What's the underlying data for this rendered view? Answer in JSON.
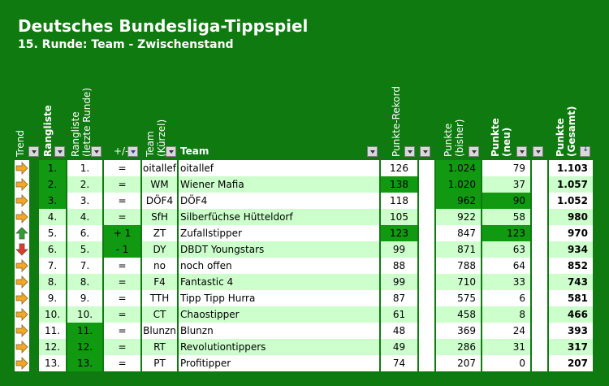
{
  "title": "Deutsches Bundesliga-Tippspiel",
  "subtitle": "15. Runde: Team - Zwischenstand",
  "headers": {
    "trend": "Trend",
    "rangliste": "Rangliste",
    "rangliste_letzte": "Rangliste\n(letzte Runde)",
    "plus_minus": "+/-",
    "team_kuerzel": "Team\n(Kürzel)",
    "team": "Team",
    "punkte_rekord": "Punkte-Rekord",
    "punkte_bisher": "Punkte\n(bisher)",
    "punkte_neu": "Punkte\n(neu)",
    "punkte_gesamt": "Punkte\n(Gesamt)"
  },
  "rows": [
    {
      "trend": "right",
      "rank": "1.",
      "last": "1.",
      "diff": "=",
      "abbr": "oitallef",
      "team": "oitallef",
      "record": "126",
      "bisher": "1.024",
      "neu": "79",
      "gesamt": "1.103"
    },
    {
      "trend": "right",
      "rank": "2.",
      "last": "2.",
      "diff": "=",
      "abbr": "WM",
      "team": "Wiener Mafia",
      "record": "138",
      "bisher": "1.020",
      "neu": "37",
      "gesamt": "1.057"
    },
    {
      "trend": "right",
      "rank": "3.",
      "last": "3.",
      "diff": "=",
      "abbr": "DÖF4",
      "team": "DÖF4",
      "record": "118",
      "bisher": "962",
      "neu": "90",
      "gesamt": "1.052"
    },
    {
      "trend": "right",
      "rank": "4.",
      "last": "4.",
      "diff": "=",
      "abbr": "SfH",
      "team": "Silberfüchse Hütteldorf",
      "record": "105",
      "bisher": "922",
      "neu": "58",
      "gesamt": "980"
    },
    {
      "trend": "up",
      "rank": "5.",
      "last": "6.",
      "diff": "+ 1",
      "abbr": "ZT",
      "team": "Zufallstipper",
      "record": "123",
      "bisher": "847",
      "neu": "123",
      "gesamt": "970"
    },
    {
      "trend": "down",
      "rank": "6.",
      "last": "5.",
      "diff": "- 1",
      "abbr": "DY",
      "team": "DBDT Youngstars",
      "record": "99",
      "bisher": "871",
      "neu": "63",
      "gesamt": "934"
    },
    {
      "trend": "right",
      "rank": "7.",
      "last": "7.",
      "diff": "=",
      "abbr": "no",
      "team": "noch offen",
      "record": "88",
      "bisher": "788",
      "neu": "64",
      "gesamt": "852"
    },
    {
      "trend": "right",
      "rank": "8.",
      "last": "8.",
      "diff": "=",
      "abbr": "F4",
      "team": "Fantastic 4",
      "record": "99",
      "bisher": "710",
      "neu": "33",
      "gesamt": "743"
    },
    {
      "trend": "right",
      "rank": "9.",
      "last": "9.",
      "diff": "=",
      "abbr": "TTH",
      "team": "Tipp Tipp Hurra",
      "record": "87",
      "bisher": "575",
      "neu": "6",
      "gesamt": "581"
    },
    {
      "trend": "right",
      "rank": "10.",
      "last": "10.",
      "diff": "=",
      "abbr": "CT",
      "team": "Chaostipper",
      "record": "61",
      "bisher": "458",
      "neu": "8",
      "gesamt": "466"
    },
    {
      "trend": "right",
      "rank": "11.",
      "last": "11.",
      "diff": "=",
      "abbr": "Blunzn",
      "team": "Blunzn",
      "record": "48",
      "bisher": "369",
      "neu": "24",
      "gesamt": "393"
    },
    {
      "trend": "right",
      "rank": "12.",
      "last": "12.",
      "diff": "=",
      "abbr": "RT",
      "team": "Revolutiontippers",
      "record": "49",
      "bisher": "286",
      "neu": "31",
      "gesamt": "317"
    },
    {
      "trend": "right",
      "rank": "13.",
      "last": "13.",
      "diff": "=",
      "abbr": "PT",
      "team": "Profitipper",
      "record": "74",
      "bisher": "207",
      "neu": "0",
      "gesamt": "207"
    }
  ],
  "highlights": {
    "rank_green_rows": [
      0,
      1,
      2
    ],
    "last_green_rows": [
      10,
      11,
      12
    ],
    "diff_green_rows": [
      4,
      5
    ],
    "record_green_rows": [
      1,
      4
    ],
    "bisher_green_rows": [
      0,
      1,
      2
    ],
    "neu_green_rows": [
      2,
      4
    ],
    "gesamt_green_rows": []
  },
  "colors": {
    "background": "#0f7a0f",
    "row_white": "#ffffff",
    "row_light": "#ccffcc",
    "highlight_green": "#119911",
    "arrow_orange": "#f5a623",
    "arrow_up_green": "#2e9e2e",
    "arrow_down_red": "#e03b24"
  },
  "icons": {
    "right": "arrow-right-icon",
    "up": "arrow-up-icon",
    "down": "arrow-down-icon",
    "dropdown": "dropdown-arrow-icon",
    "filter": "filter-icon",
    "sort": "sort-descending-icon"
  }
}
